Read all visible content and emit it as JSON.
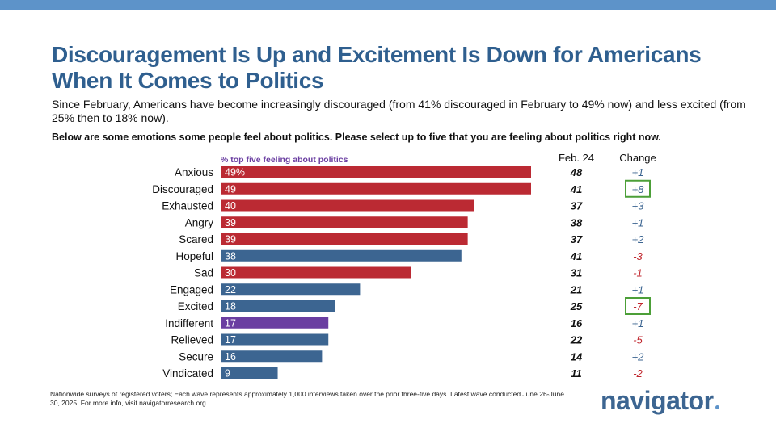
{
  "header": {
    "title": "Discouragement Is Up and Excitement Is Down for Americans When It Comes to Politics",
    "subtitle": "Since February, Americans have become increasingly discouraged (from 41% discouraged in February to 49% now) and less excited (from 25% then to 18% now).",
    "question": "Below are some emotions some people feel about politics. Please select up to five that you are feeling about politics right now."
  },
  "footer": {
    "note": "Nationwide surveys of registered voters; Each wave represents approximately 1,000 interviews taken over the prior three-five days. Latest wave conducted June 26-June 30, 2025. For more info, visit navigatorresearch.org.",
    "logo": "navigator"
  },
  "colors": {
    "red": "#bb2a33",
    "blue": "#3c6591",
    "purple": "#6a3ea1",
    "negative": "#c0262d",
    "positive": "#3c6591",
    "highlight_box": "#4c9f38",
    "top_band": "#5d93c9"
  },
  "chart_data": {
    "type": "bar",
    "orientation": "horizontal",
    "series_label": "% top five feeling about politics",
    "columns": {
      "prior": "Feb. 24",
      "change": "Change"
    },
    "xlim": [
      0,
      50
    ],
    "rows": [
      {
        "category": "Anxious",
        "value": 49,
        "label": "49%",
        "color": "red",
        "prior": 48,
        "change": "+1",
        "highlight": false
      },
      {
        "category": "Discouraged",
        "value": 49,
        "label": "49",
        "color": "red",
        "prior": 41,
        "change": "+8",
        "highlight": true
      },
      {
        "category": "Exhausted",
        "value": 40,
        "label": "40",
        "color": "red",
        "prior": 37,
        "change": "+3",
        "highlight": false
      },
      {
        "category": "Angry",
        "value": 39,
        "label": "39",
        "color": "red",
        "prior": 38,
        "change": "+1",
        "highlight": false
      },
      {
        "category": "Scared",
        "value": 39,
        "label": "39",
        "color": "red",
        "prior": 37,
        "change": "+2",
        "highlight": false
      },
      {
        "category": "Hopeful",
        "value": 38,
        "label": "38",
        "color": "blue",
        "prior": 41,
        "change": "-3",
        "highlight": false
      },
      {
        "category": "Sad",
        "value": 30,
        "label": "30",
        "color": "red",
        "prior": 31,
        "change": "-1",
        "highlight": false
      },
      {
        "category": "Engaged",
        "value": 22,
        "label": "22",
        "color": "blue",
        "prior": 21,
        "change": "+1",
        "highlight": false
      },
      {
        "category": "Excited",
        "value": 18,
        "label": "18",
        "color": "blue",
        "prior": 25,
        "change": "-7",
        "highlight": true
      },
      {
        "category": "Indifferent",
        "value": 17,
        "label": "17",
        "color": "purple",
        "prior": 16,
        "change": "+1",
        "highlight": false
      },
      {
        "category": "Relieved",
        "value": 17,
        "label": "17",
        "color": "blue",
        "prior": 22,
        "change": "-5",
        "highlight": false
      },
      {
        "category": "Secure",
        "value": 16,
        "label": "16",
        "color": "blue",
        "prior": 14,
        "change": "+2",
        "highlight": false
      },
      {
        "category": "Vindicated",
        "value": 9,
        "label": "9",
        "color": "blue",
        "prior": 11,
        "change": "-2",
        "highlight": false
      }
    ]
  }
}
